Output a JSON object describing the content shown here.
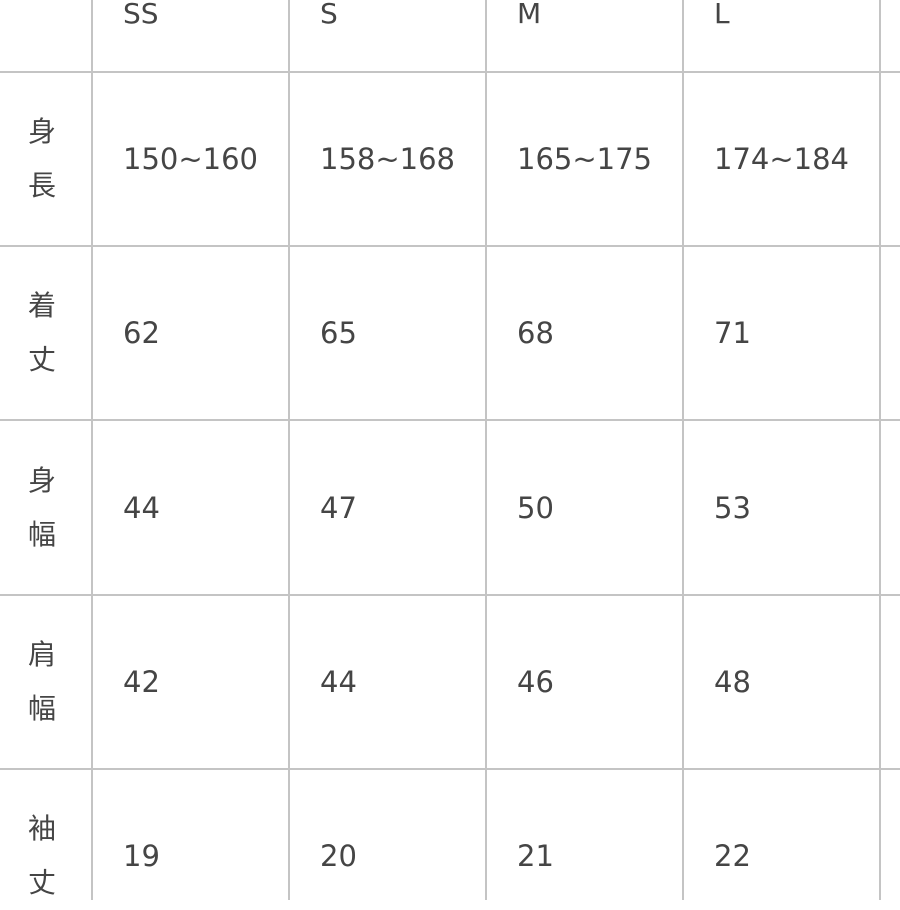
{
  "table": {
    "headers": [
      "",
      "SS",
      "S",
      "M",
      "L"
    ],
    "rows": [
      {
        "label": [
          "身",
          "長"
        ],
        "values": [
          "150~160",
          "158~168",
          "165~175",
          "174~184"
        ]
      },
      {
        "label": [
          "着",
          "丈"
        ],
        "values": [
          "62",
          "65",
          "68",
          "71"
        ]
      },
      {
        "label": [
          "身",
          "幅"
        ],
        "values": [
          "44",
          "47",
          "50",
          "53"
        ]
      },
      {
        "label": [
          "肩",
          "幅"
        ],
        "values": [
          "42",
          "44",
          "46",
          "48"
        ]
      },
      {
        "label": [
          "袖",
          "丈"
        ],
        "values": [
          "19",
          "20",
          "21",
          "22"
        ]
      }
    ]
  }
}
